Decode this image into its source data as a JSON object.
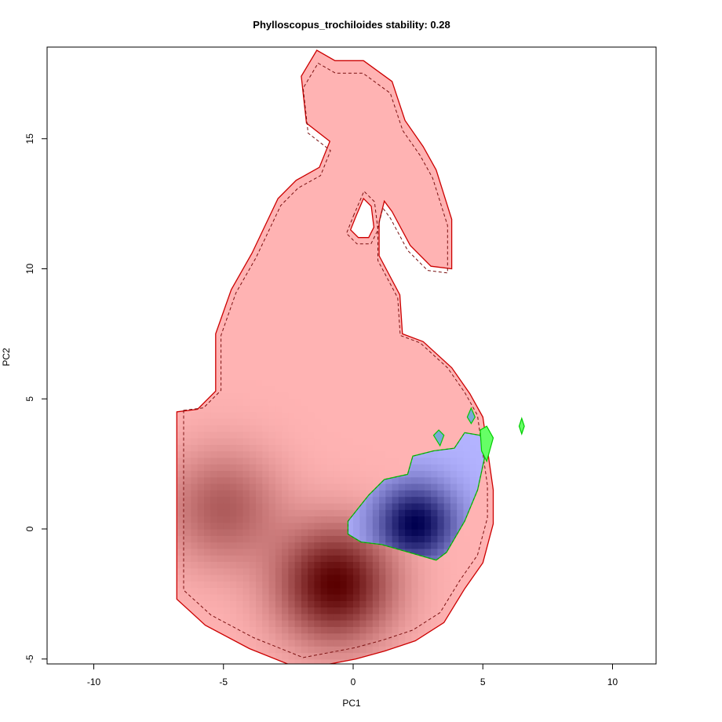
{
  "chart_data": {
    "type": "heatmap",
    "title": "Phylloscopus_trochiloides stability: 0.28",
    "xlabel": "PC1",
    "ylabel": "PC2",
    "xlim": [
      -10,
      10
    ],
    "ylim": [
      -5,
      15
    ],
    "x_ticks": [
      -10,
      -5,
      0,
      5,
      10
    ],
    "y_ticks": [
      -5,
      0,
      5,
      10,
      15
    ],
    "grid": false,
    "legend": "none",
    "colors": {
      "native_fill": "#ffb3b3",
      "native_dense": "#5a0000",
      "native_contour": "#cc0000",
      "invaded_fill": "#b3b3ff",
      "invaded_dense": "#000050",
      "invaded_contour": "#00cc00",
      "overlap_patch": "#7aa8d8"
    },
    "density_peaks": [
      {
        "layer": "native",
        "x": -0.7,
        "y": -2.1,
        "intensity": 1.0
      },
      {
        "layer": "native",
        "x": -5.0,
        "y": 0.8,
        "intensity": 0.45
      },
      {
        "layer": "invaded",
        "x": 2.4,
        "y": 0.2,
        "intensity": 1.0
      }
    ],
    "native_contour": [
      [
        -6.8,
        4.5
      ],
      [
        -6.0,
        4.6
      ],
      [
        -5.3,
        5.3
      ],
      [
        -5.3,
        7.5
      ],
      [
        -4.7,
        9.2
      ],
      [
        -3.9,
        10.6
      ],
      [
        -2.9,
        12.7
      ],
      [
        -2.2,
        13.4
      ],
      [
        -1.3,
        13.9
      ],
      [
        -0.9,
        14.9
      ],
      [
        -1.8,
        15.6
      ],
      [
        -2.0,
        17.4
      ],
      [
        -1.4,
        18.4
      ],
      [
        -0.7,
        18.0
      ],
      [
        0.4,
        18.0
      ],
      [
        1.5,
        17.2
      ],
      [
        2.0,
        15.7
      ],
      [
        2.7,
        14.7
      ],
      [
        3.2,
        13.8
      ],
      [
        3.8,
        11.9
      ],
      [
        3.8,
        10.0
      ],
      [
        3.0,
        10.1
      ],
      [
        2.2,
        10.9
      ],
      [
        1.5,
        12.2
      ],
      [
        1.2,
        12.6
      ],
      [
        1.0,
        11.8
      ],
      [
        1.0,
        10.5
      ],
      [
        1.8,
        9.0
      ],
      [
        1.9,
        7.5
      ],
      [
        2.7,
        7.2
      ],
      [
        3.8,
        6.2
      ],
      [
        4.5,
        5.2
      ],
      [
        5.0,
        4.3
      ],
      [
        5.2,
        2.9
      ],
      [
        5.4,
        1.5
      ],
      [
        5.4,
        0.2
      ],
      [
        5.0,
        -1.3
      ],
      [
        4.3,
        -2.3
      ],
      [
        3.5,
        -3.6
      ],
      [
        2.4,
        -4.3
      ],
      [
        1.2,
        -4.7
      ],
      [
        0.1,
        -5.0
      ],
      [
        -2.0,
        -5.4
      ],
      [
        -4.0,
        -4.6
      ],
      [
        -5.7,
        -3.7
      ],
      [
        -6.8,
        -2.7
      ]
    ],
    "native_hole": [
      [
        0.1,
        12.0
      ],
      [
        0.4,
        12.7
      ],
      [
        0.7,
        12.4
      ],
      [
        0.8,
        11.6
      ],
      [
        0.6,
        11.2
      ],
      [
        0.2,
        11.2
      ],
      [
        -0.1,
        11.5
      ]
    ],
    "invaded_contour": [
      [
        -0.2,
        0.3
      ],
      [
        0.6,
        1.3
      ],
      [
        1.2,
        1.9
      ],
      [
        2.1,
        2.1
      ],
      [
        2.3,
        2.8
      ],
      [
        3.1,
        3.0
      ],
      [
        3.9,
        3.1
      ],
      [
        4.3,
        3.7
      ],
      [
        4.9,
        3.6
      ],
      [
        5.1,
        2.9
      ],
      [
        4.8,
        1.5
      ],
      [
        4.3,
        0.3
      ],
      [
        3.6,
        -0.9
      ],
      [
        3.2,
        -1.2
      ],
      [
        2.5,
        -1.0
      ],
      [
        1.1,
        -0.6
      ],
      [
        0.3,
        -0.5
      ],
      [
        -0.2,
        -0.2
      ]
    ],
    "small_patches": [
      {
        "layer": "overlap",
        "points": [
          [
            3.1,
            3.6
          ],
          [
            3.3,
            3.8
          ],
          [
            3.5,
            3.6
          ],
          [
            3.35,
            3.2
          ]
        ]
      },
      {
        "layer": "overlap",
        "points": [
          [
            4.4,
            4.3
          ],
          [
            4.55,
            4.65
          ],
          [
            4.7,
            4.3
          ],
          [
            4.55,
            4.05
          ]
        ]
      },
      {
        "layer": "invaded",
        "points": [
          [
            4.9,
            3.8
          ],
          [
            5.15,
            3.95
          ],
          [
            5.4,
            3.5
          ],
          [
            5.15,
            2.6
          ],
          [
            4.95,
            3.0
          ]
        ]
      },
      {
        "layer": "invaded",
        "points": [
          [
            6.4,
            3.95
          ],
          [
            6.5,
            4.25
          ],
          [
            6.6,
            3.95
          ],
          [
            6.5,
            3.65
          ]
        ]
      }
    ]
  }
}
